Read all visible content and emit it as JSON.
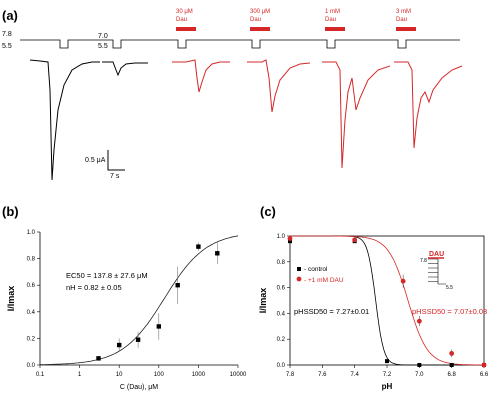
{
  "chart_data": [
    {
      "panel": "(a)",
      "type": "line",
      "description_labels": {
        "ph_high": "7.8",
        "ph_low": "5.5",
        "ph_mid": "7.0",
        "ph_low2": "5.5"
      },
      "drug_labels": [
        {
          "conc": "30 μM",
          "name": "Dau"
        },
        {
          "conc": "300 μM",
          "name": "Dau"
        },
        {
          "conc": "1 mM",
          "name": "Dau"
        },
        {
          "conc": "3 mM",
          "name": "Dau"
        }
      ],
      "scale_bar": {
        "current": "0.5 μA",
        "time": "7 s"
      },
      "colors": {
        "control": "#000000",
        "drug": "#d62728"
      }
    },
    {
      "panel": "(b)",
      "type": "scatter",
      "xlabel": "C (Dau), μM",
      "ylabel": "I/Imax",
      "x_scale": "log",
      "xlim": [
        0.1,
        10000
      ],
      "ylim": [
        0,
        1.0
      ],
      "x_ticks": [
        "0.1",
        "1",
        "10",
        "100",
        "1000",
        "10000"
      ],
      "y_ticks": [
        "0.0",
        "0.2",
        "0.4",
        "0.6",
        "0.8",
        "1.0"
      ],
      "annotation_ec50": "EC50 = 137.8 ± 27.6 μM",
      "annotation_nh": "nH = 0.82 ± 0.05",
      "fit": {
        "ec50": 137.8,
        "nh": 0.82
      },
      "points": [
        {
          "x": 3,
          "y": 0.05,
          "err": 0.01
        },
        {
          "x": 10,
          "y": 0.15,
          "err": 0.05
        },
        {
          "x": 30,
          "y": 0.19,
          "err": 0.06
        },
        {
          "x": 100,
          "y": 0.29,
          "err": 0.1
        },
        {
          "x": 300,
          "y": 0.6,
          "err": 0.14
        },
        {
          "x": 1000,
          "y": 0.89,
          "err": 0.03
        },
        {
          "x": 3000,
          "y": 0.84,
          "err": 0.08
        }
      ]
    },
    {
      "panel": "(c)",
      "type": "scatter",
      "xlabel": "pH",
      "ylabel": "I/Imax",
      "xlim": [
        7.8,
        6.6
      ],
      "ylim": [
        0,
        1.0
      ],
      "x_ticks": [
        "7.8",
        "7.6",
        "7.4",
        "7.2",
        "7.0",
        "6.8",
        "6.6"
      ],
      "y_ticks": [
        "0.0",
        "0.2",
        "0.4",
        "0.6",
        "0.8",
        "1.0"
      ],
      "legend": [
        "- control",
        "- +1 mM DAU"
      ],
      "annotation_control": "pHSSD50 = 7.27±0.01",
      "annotation_dau": "pHSSD50 = 7.07±0.03",
      "inset_label": "DAU",
      "inset_ph_high": "7.8",
      "inset_ph_low": "5.5",
      "fits": {
        "control": {
          "ph50": 7.27
        },
        "dau": {
          "ph50": 7.07
        }
      },
      "series": [
        {
          "name": "control",
          "color": "#000000",
          "x": [
            7.8,
            7.4,
            7.2,
            7.0,
            6.8,
            6.6
          ],
          "y": [
            0.96,
            0.96,
            0.03,
            0.0,
            0.0,
            0.0
          ]
        },
        {
          "name": "+1 mM DAU",
          "color": "#d62728",
          "x": [
            7.8,
            7.4,
            7.1,
            7.0,
            6.8,
            6.6
          ],
          "y": [
            0.98,
            0.97,
            0.65,
            0.34,
            0.09,
            0.0
          ],
          "err": [
            0.02,
            0.02,
            0.05,
            0.04,
            0.03,
            0.0
          ]
        }
      ]
    }
  ],
  "panels": {
    "a": "(a)",
    "b": "(b)",
    "c": "(c)"
  }
}
